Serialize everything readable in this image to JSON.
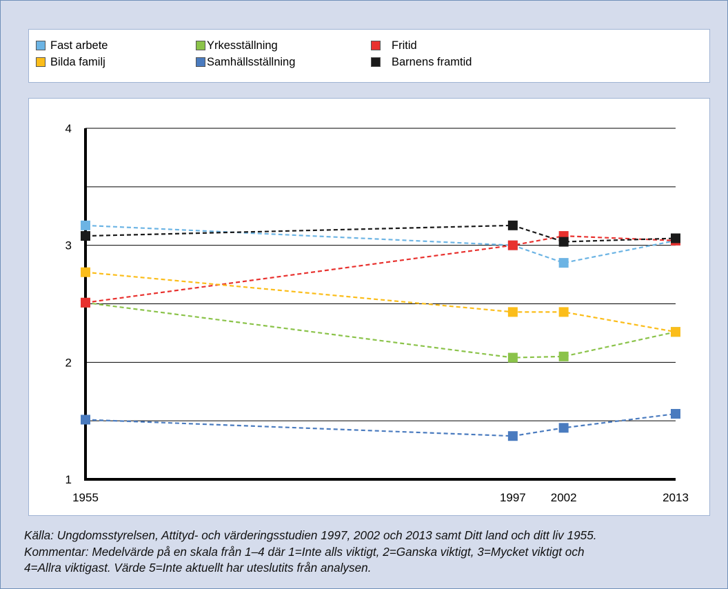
{
  "legend": {
    "items": [
      {
        "label": "Fast arbete",
        "color": "#6cb4e4"
      },
      {
        "label": "Yrkesställning",
        "color": "#8bc34a"
      },
      {
        "label": "Fritid",
        "color": "#e8312e"
      },
      {
        "label": "Bilda familj",
        "color": "#fbbd1a"
      },
      {
        "label": "Samhällsställning",
        "color": "#4a7bbf"
      },
      {
        "label": "Barnens framtid",
        "color": "#1a1a1a"
      }
    ]
  },
  "caption": {
    "line1": "Källa: Ungdomsstyrelsen, Attityd- och värderingsstudien 1997, 2002 och 2013 samt Ditt land och ditt liv 1955.",
    "line2": "Kommentar: Medelvärde på en skala från 1–4  där  1=Inte alls viktigt, 2=Ganska viktigt, 3=Mycket viktigt och",
    "line3": "4=Allra viktigast. Värde 5=Inte aktuellt har uteslutits från analysen."
  },
  "chart_data": {
    "type": "line",
    "x": [
      1955,
      1997,
      2002,
      2013
    ],
    "xticks": [
      "1955",
      "1997",
      "2002",
      "2013"
    ],
    "yticks": [
      "1",
      "2",
      "3",
      "4"
    ],
    "ylim": [
      1,
      4
    ],
    "grid": true,
    "legend_position": "top",
    "line_style": "dashed",
    "series": [
      {
        "name": "Fast arbete",
        "color": "#6cb4e4",
        "values": [
          3.17,
          3.0,
          2.85,
          3.04
        ]
      },
      {
        "name": "Yrkesställning",
        "color": "#8bc34a",
        "values": [
          2.51,
          2.04,
          2.05,
          2.26
        ]
      },
      {
        "name": "Fritid",
        "color": "#e8312e",
        "values": [
          2.51,
          3.0,
          3.08,
          3.04
        ]
      },
      {
        "name": "Bilda familj",
        "color": "#fbbd1a",
        "values": [
          2.77,
          2.43,
          2.43,
          2.26
        ]
      },
      {
        "name": "Samhällsställning",
        "color": "#4a7bbf",
        "values": [
          1.51,
          1.37,
          1.44,
          1.56
        ]
      },
      {
        "name": "Barnens framtid",
        "color": "#1a1a1a",
        "values": [
          3.08,
          3.17,
          3.03,
          3.06
        ]
      }
    ]
  }
}
